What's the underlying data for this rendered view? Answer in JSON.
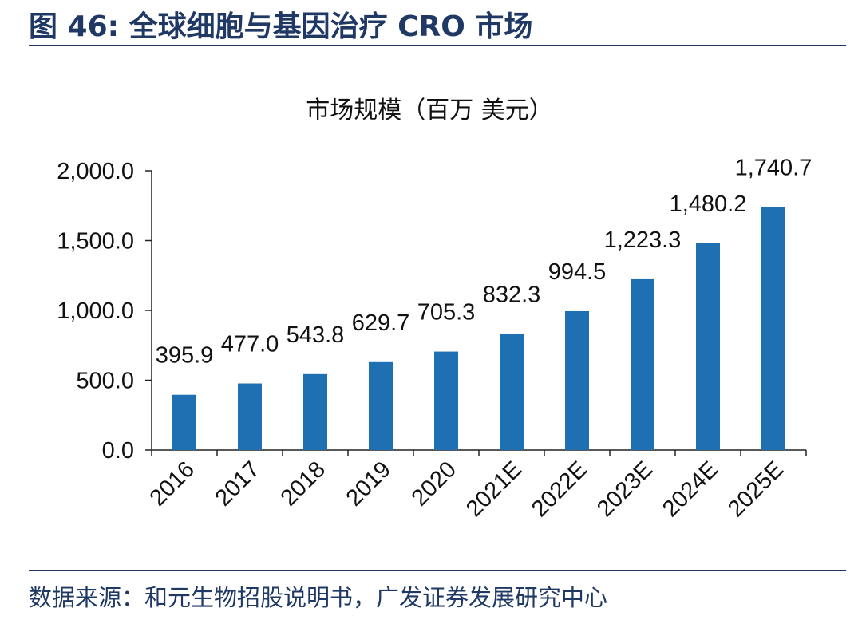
{
  "figure": {
    "label": "图 46:",
    "title": "全球细胞与基因治疗 CRO 市场"
  },
  "source": "数据来源：和元生物招股说明书，广发证券发展研究中心",
  "colors": {
    "bar": "#1f6fb3",
    "header": "#1f3864",
    "axis": "#222222"
  },
  "chart_data": {
    "type": "bar",
    "title": "市场规模（百万 美元）",
    "categories": [
      "2016",
      "2017",
      "2018",
      "2019",
      "2020",
      "2021E",
      "2022E",
      "2023E",
      "2024E",
      "2025E"
    ],
    "values": [
      395.9,
      477.0,
      543.8,
      629.7,
      705.3,
      832.3,
      994.5,
      1223.3,
      1480.2,
      1740.7
    ],
    "value_labels": [
      "395.9",
      "477.0",
      "543.8",
      "629.7",
      "705.3",
      "832.3",
      "994.5",
      "1,223.3",
      "1,480.2",
      "1,740.7"
    ],
    "ylim": [
      0,
      2000
    ],
    "yticks": [
      0,
      500,
      1000,
      1500,
      2000
    ],
    "ytick_labels": [
      "0.0",
      "500.0",
      "1,000.0",
      "1,500.0",
      "2,000.0"
    ],
    "xlabel": "",
    "ylabel": "",
    "grid": false,
    "legend": "none"
  }
}
